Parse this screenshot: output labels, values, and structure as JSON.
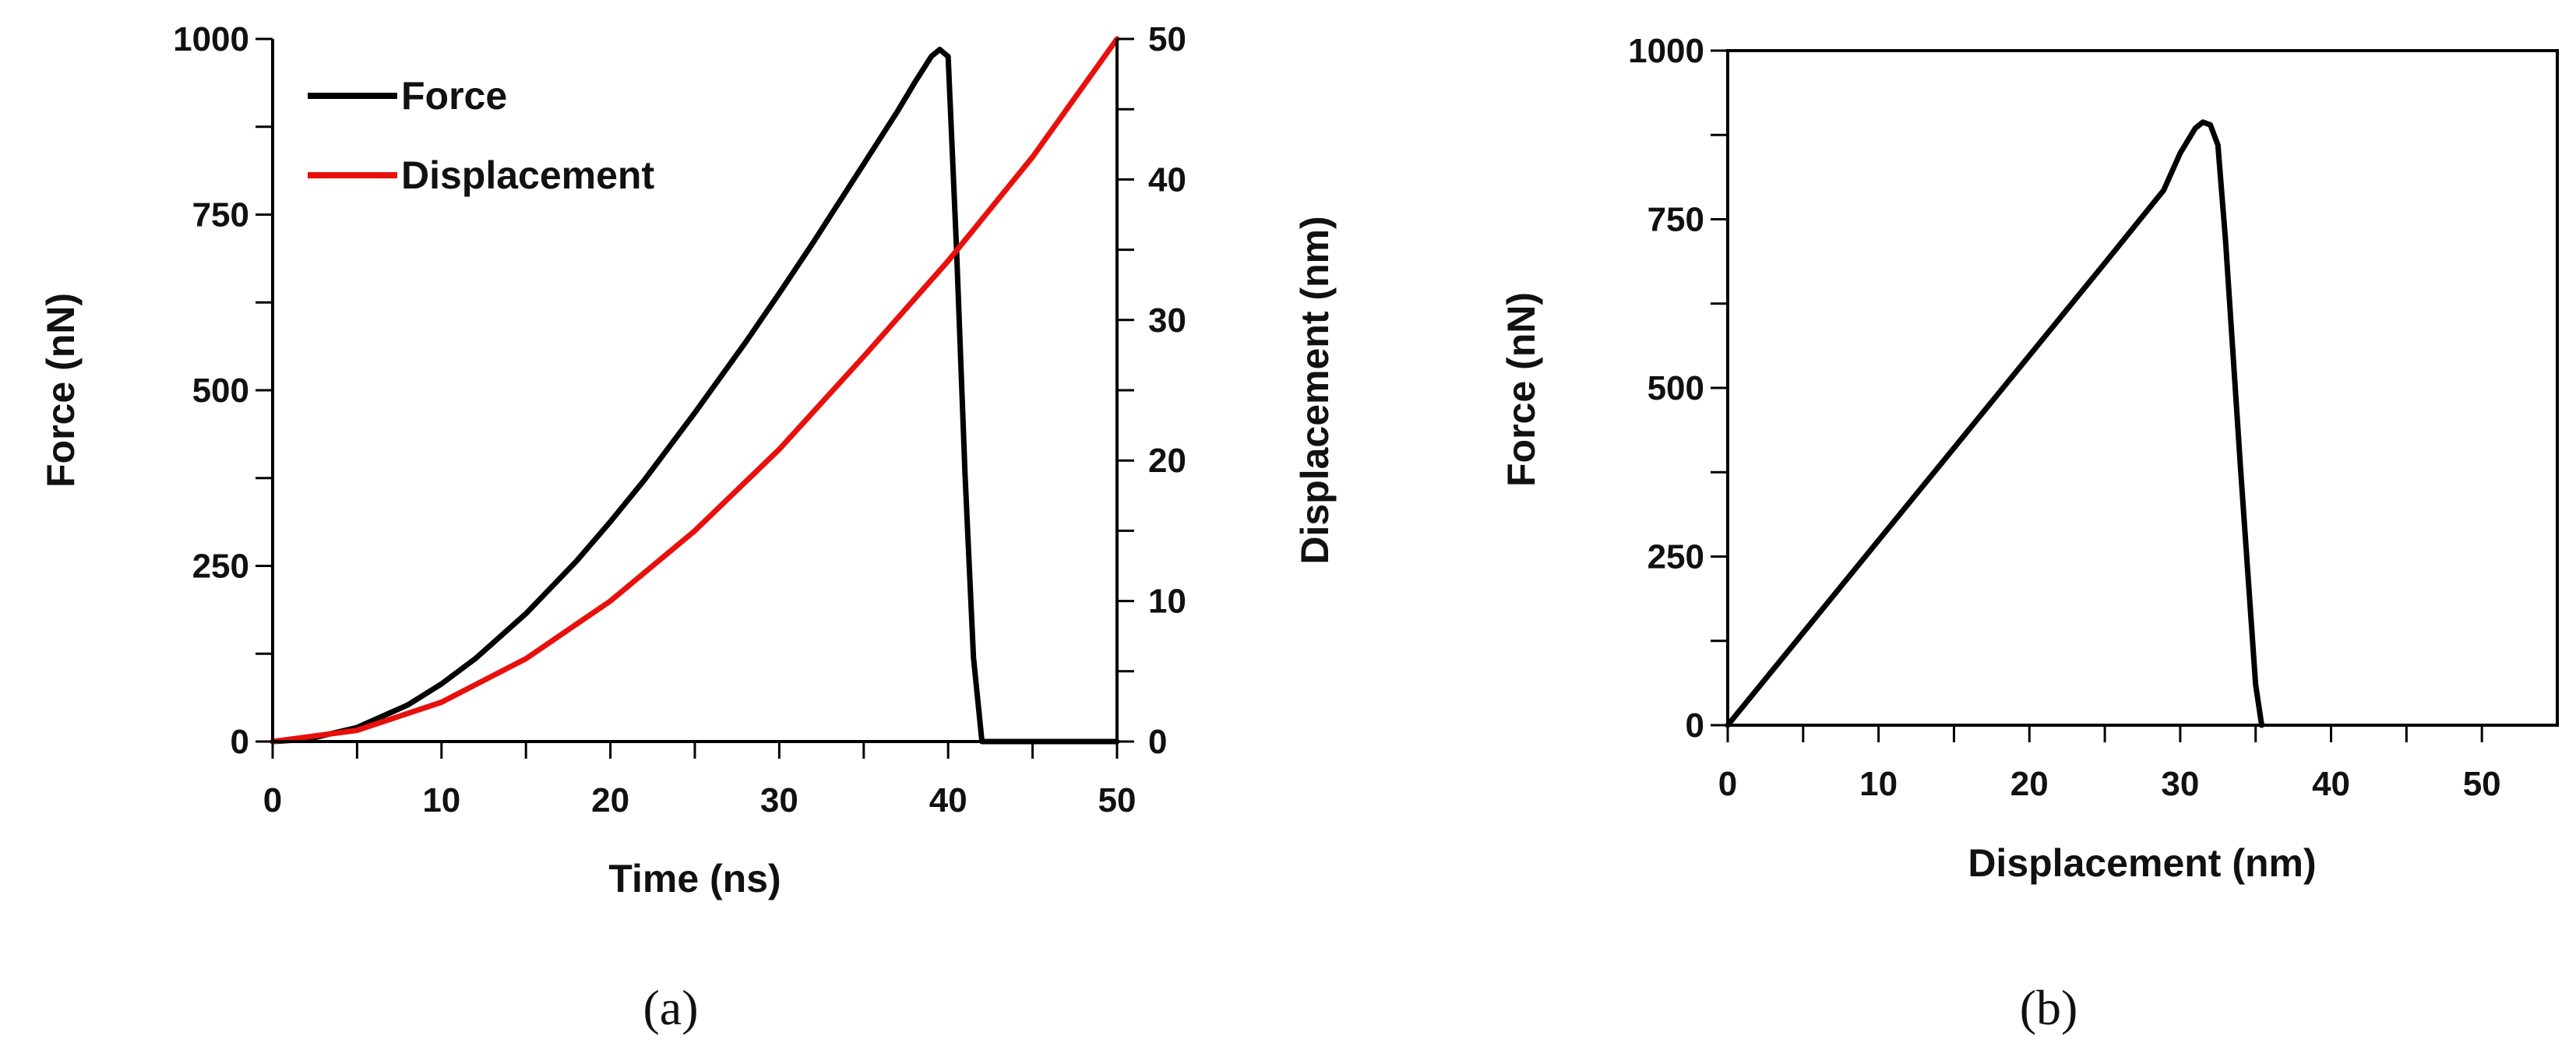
{
  "chart_data": [
    {
      "panel": "(a)",
      "type": "line",
      "xlabel": "Time (ns)",
      "ylabel": "Force (nN)",
      "y2label": "Displacement (nm)",
      "xlim": [
        0,
        50
      ],
      "ylim": [
        0,
        1000
      ],
      "y2lim": [
        0,
        50
      ],
      "x_ticks": [
        0,
        10,
        20,
        30,
        40,
        50
      ],
      "y_ticks": [
        0,
        250,
        500,
        750,
        1000
      ],
      "y2_ticks": [
        0,
        10,
        20,
        30,
        40,
        50
      ],
      "legend_position": "top-left",
      "series": [
        {
          "name": "Force",
          "axis": "left",
          "color": "#000000",
          "x": [
            0,
            2,
            5,
            8,
            10,
            12,
            15,
            18,
            20,
            22,
            25,
            28,
            30,
            32,
            35,
            37,
            38,
            39,
            39.5,
            40,
            40.5,
            41,
            41.5,
            42,
            43,
            44,
            46,
            48,
            50
          ],
          "y": [
            0,
            3,
            20,
            52,
            82,
            118,
            182,
            257,
            313,
            372,
            468,
            568,
            638,
            710,
            822,
            897,
            937,
            975,
            985,
            975,
            700,
            380,
            120,
            0,
            0,
            0,
            0,
            0,
            0
          ]
        },
        {
          "name": "Displacement",
          "axis": "right",
          "color": "#e8100c",
          "x": [
            0,
            5,
            10,
            15,
            20,
            25,
            30,
            35,
            40,
            45,
            50
          ],
          "y": [
            0,
            0.8,
            2.8,
            5.9,
            10.0,
            15.0,
            20.8,
            27.4,
            34.2,
            41.6,
            50.0
          ]
        }
      ]
    },
    {
      "panel": "(b)",
      "type": "line",
      "xlabel": "Displacement (nm)",
      "ylabel": "Force (nN)",
      "xlim": [
        0,
        55
      ],
      "ylim": [
        0,
        1000
      ],
      "x_ticks": [
        0,
        10,
        20,
        30,
        40,
        50
      ],
      "y_ticks": [
        0,
        250,
        500,
        750,
        1000
      ],
      "series": [
        {
          "name": "Force",
          "color": "#000000",
          "x": [
            0,
            5,
            10,
            15,
            20,
            25,
            28.9,
            30,
            31,
            31.5,
            32,
            32.5,
            33,
            34,
            35,
            35.4
          ],
          "y": [
            0,
            137,
            274,
            411,
            548,
            685,
            793,
            848,
            885,
            894,
            890,
            860,
            720,
            380,
            60,
            0
          ]
        }
      ]
    }
  ]
}
